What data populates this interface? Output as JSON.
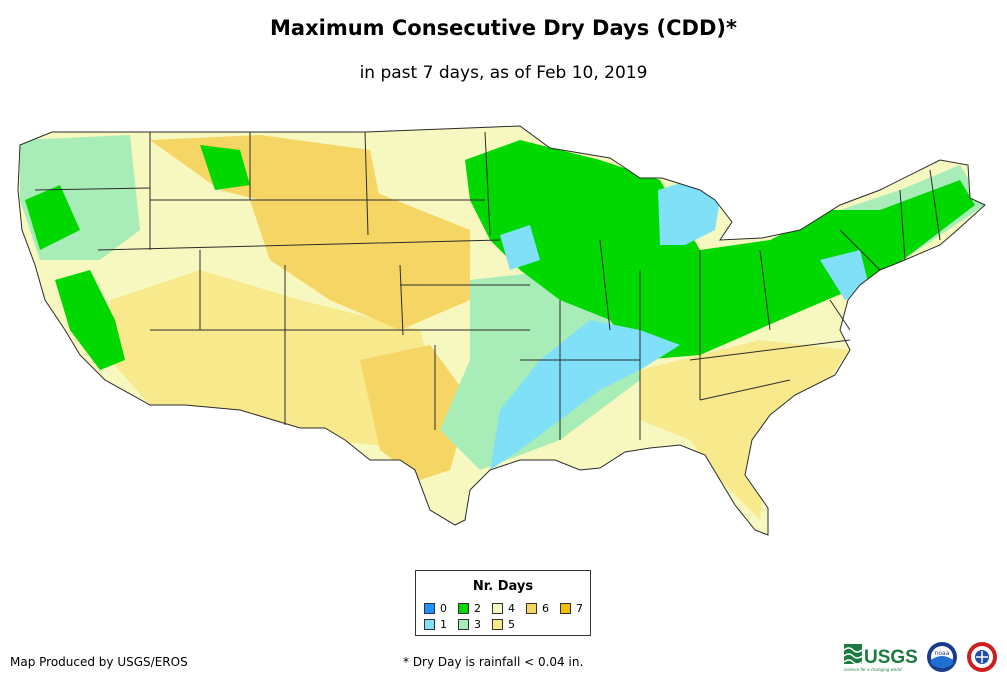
{
  "header": {
    "title": "Maximum Consecutive Dry Days (CDD)*",
    "subtitle": "in past 7 days, as of Feb 10, 2019"
  },
  "legend": {
    "title": "Nr. Days",
    "items": [
      {
        "label": "0",
        "color": "#1e90ff"
      },
      {
        "label": "1",
        "color": "#7fe0f7"
      },
      {
        "label": "2",
        "color": "#00d800"
      },
      {
        "label": "3",
        "color": "#a8edb8"
      },
      {
        "label": "4",
        "color": "#f7f7c0"
      },
      {
        "label": "5",
        "color": "#f7e98c"
      },
      {
        "label": "6",
        "color": "#f5d564"
      },
      {
        "label": "7",
        "color": "#f2bd00"
      }
    ]
  },
  "footer": {
    "credit": "Map Produced by USGS/EROS",
    "footnote": "* Dry Day is rainfall < 0.04 in.",
    "logo_text": "USGS",
    "logo_tagline": "science for a changing world",
    "noaa_text": "noaa"
  },
  "colors": {
    "background": "#ffffff",
    "border": "#2b2b2b"
  }
}
